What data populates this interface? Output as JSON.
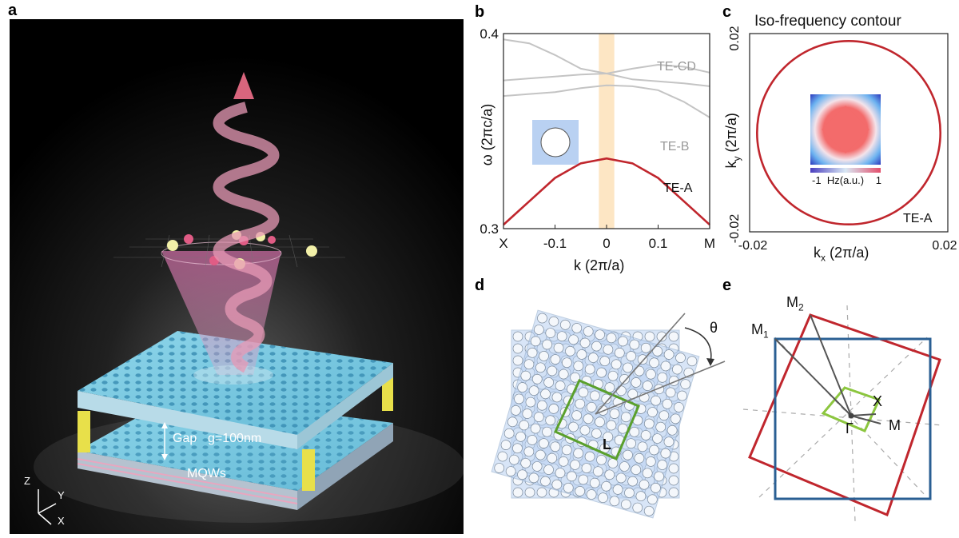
{
  "panels": {
    "a": {
      "letter": "a",
      "labels": {
        "gap": "Gap",
        "g_value": "g=100nm",
        "mqws": "MQWs",
        "axis_z": "Z",
        "axis_y": "Y",
        "axis_x": "X"
      }
    },
    "b": {
      "letter": "b",
      "ylabel": "ω (2πc/a)",
      "xlabel": "k (2π/a)",
      "y_ticks": [
        "0.4",
        "0.3"
      ],
      "x_ticks": [
        "X",
        "-0.1",
        "0",
        "0.1",
        "M"
      ],
      "band_labels": [
        "TE-CD",
        "TE-B",
        "TE-A"
      ],
      "colors": {
        "te_a": "#c0262d",
        "gray_bands": "#c4c4c4",
        "highlight": "#fde6c4",
        "unit_cell": "#b9d1f2"
      }
    },
    "c": {
      "letter": "c",
      "title": "Iso-frequency contour",
      "xlabel": "k",
      "xlabel_sub": "x",
      "xlabel_unit": " (2π/a)",
      "ylabel": "k",
      "ylabel_sub": "y",
      "ylabel_unit": " (2π/a)",
      "x_ticks": [
        "-0.02",
        "0.02"
      ],
      "y_ticks": [
        "0.02",
        "-0.02"
      ],
      "contour_label": "TE-A",
      "colorbar": {
        "min": "-1",
        "label": "Hz(a.u.)",
        "max": "1"
      },
      "colors": {
        "contour": "#c0262d"
      }
    },
    "d": {
      "letter": "d",
      "theta": "θ",
      "l_label": "L",
      "colors": {
        "lattice": "#b9d1f2",
        "cell": "#5aa02c"
      }
    },
    "e": {
      "letter": "e",
      "labels": {
        "m1": "M",
        "m1_sub": "1",
        "m2": "M",
        "m2_sub": "2",
        "x": "X",
        "m": "M",
        "gamma": "Γ"
      },
      "colors": {
        "red_square": "#c0262d",
        "blue_square": "#2a5f93",
        "green_square": "#8cc63f"
      }
    }
  },
  "chart_data": [
    {
      "type": "line",
      "xlabel": "k (2π/a)",
      "ylabel": "ω (2πc/a)",
      "xlim": [
        -0.2,
        0.2
      ],
      "ylim": [
        0.3,
        0.4
      ],
      "x_tick_labels": [
        "X",
        "-0.1",
        "0",
        "0.1",
        "M"
      ],
      "series": [
        {
          "name": "TE-A",
          "x": [
            -0.2,
            -0.15,
            -0.1,
            -0.05,
            0,
            0.05,
            0.1,
            0.15,
            0.2
          ],
          "y": [
            0.302,
            0.314,
            0.326,
            0.3335,
            0.336,
            0.3335,
            0.326,
            0.314,
            0.302
          ]
        },
        {
          "name": "TE-B",
          "x": [
            -0.2,
            -0.15,
            -0.1,
            -0.05,
            0,
            0.05,
            0.1,
            0.15,
            0.2
          ],
          "y": [
            0.368,
            0.369,
            0.37,
            0.372,
            0.3735,
            0.373,
            0.371,
            0.365,
            0.357
          ]
        },
        {
          "name": "TE-CD",
          "x": [
            -0.2,
            -0.15,
            -0.1,
            -0.05,
            0,
            0.05,
            0.1,
            0.15,
            0.2
          ],
          "y": [
            0.376,
            0.377,
            0.378,
            0.379,
            0.3795,
            0.382,
            0.384,
            0.383,
            0.38
          ]
        },
        {
          "name": "",
          "x": [
            -0.2,
            -0.15,
            -0.1,
            -0.05,
            0,
            0.05,
            0.1,
            0.15,
            0.2
          ],
          "y": [
            0.397,
            0.395,
            0.389,
            0.382,
            0.3795,
            0.3765,
            0.3755,
            0.3745,
            0.373
          ]
        }
      ],
      "highlight_band": [
        -0.015,
        0.015
      ]
    },
    {
      "type": "scatter",
      "title": "Iso-frequency contour",
      "xlabel": "kx (2π/a)",
      "ylabel": "ky (2π/a)",
      "xlim": [
        -0.02,
        0.02
      ],
      "ylim": [
        -0.02,
        0.02
      ],
      "series": [
        {
          "name": "TE-A",
          "shape": "circle",
          "center": [
            0,
            0
          ],
          "radius": 0.0185
        }
      ]
    }
  ]
}
